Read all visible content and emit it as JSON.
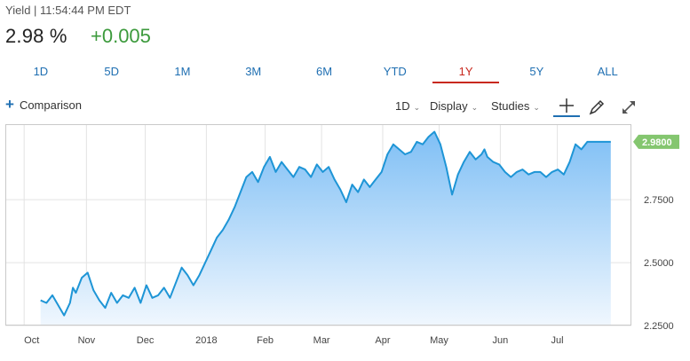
{
  "quote": {
    "subtitle": "Yield | 11:54:44 PM EDT",
    "price": "2.98 %",
    "change": "+0.005",
    "change_color": "#3c9a3c"
  },
  "range_tabs": [
    "1D",
    "5D",
    "1M",
    "3M",
    "6M",
    "YTD",
    "1Y",
    "5Y",
    "ALL"
  ],
  "active_range": "1Y",
  "toolbar": {
    "comparison_label": "Comparison",
    "interval_label": "1D",
    "display_label": "Display",
    "studies_label": "Studies",
    "crosshair_icon": "crosshair-icon",
    "draw_icon": "pencil-icon",
    "expand_icon": "expand-icon"
  },
  "chart_data": {
    "type": "area",
    "title": "",
    "xlabel": "",
    "ylabel": "",
    "ylim": [
      2.25,
      3.05
    ],
    "y_ticks": [
      "2.2500",
      "2.5000",
      "2.7500"
    ],
    "x_ticks": [
      "Oct",
      "Nov",
      "Dec",
      "2018",
      "Feb",
      "Mar",
      "Apr",
      "May",
      "Jun",
      "Jul"
    ],
    "x_tick_positions": [
      -0.28,
      0.78,
      1.78,
      2.82,
      3.82,
      4.78,
      5.82,
      6.78,
      7.82,
      8.79
    ],
    "grid": true,
    "last_value_label": "2.9800",
    "line_color": "#1e95d6",
    "fill_color_top": "#7fbff5",
    "fill_color_bottom": "#f0f7fe",
    "series": [
      {
        "x": [
          0,
          0.1,
          0.2,
          0.3,
          0.4,
          0.5,
          0.55,
          0.6,
          0.7,
          0.8,
          0.9,
          1.0,
          1.1,
          1.2,
          1.3,
          1.4,
          1.5,
          1.6,
          1.7,
          1.8,
          1.9,
          2.0,
          2.1,
          2.2,
          2.3,
          2.4,
          2.5,
          2.6,
          2.7,
          2.8,
          2.9,
          3.0,
          3.1,
          3.2,
          3.3,
          3.4,
          3.5,
          3.6,
          3.7,
          3.8,
          3.9,
          4.0,
          4.1,
          4.2,
          4.3,
          4.4,
          4.5,
          4.6,
          4.7,
          4.8,
          4.9,
          5.0,
          5.1,
          5.2,
          5.3,
          5.4,
          5.5,
          5.6,
          5.7,
          5.8,
          5.9,
          6.0,
          6.1,
          6.2,
          6.3,
          6.4,
          6.5,
          6.6,
          6.7,
          6.8,
          6.9,
          7.0,
          7.1,
          7.2,
          7.3,
          7.4,
          7.5,
          7.55,
          7.6,
          7.7,
          7.8,
          7.9,
          8.0,
          8.1,
          8.2,
          8.3,
          8.4,
          8.5,
          8.6,
          8.7,
          8.8,
          8.9,
          9.0,
          9.1,
          9.2,
          9.3,
          9.4,
          9.5,
          9.6,
          9.7
        ],
        "values": [
          2.35,
          2.34,
          2.37,
          2.33,
          2.29,
          2.34,
          2.4,
          2.38,
          2.44,
          2.46,
          2.39,
          2.35,
          2.32,
          2.38,
          2.34,
          2.37,
          2.36,
          2.4,
          2.34,
          2.41,
          2.36,
          2.37,
          2.4,
          2.36,
          2.42,
          2.48,
          2.45,
          2.41,
          2.45,
          2.5,
          2.55,
          2.6,
          2.63,
          2.67,
          2.72,
          2.78,
          2.84,
          2.86,
          2.82,
          2.88,
          2.92,
          2.86,
          2.9,
          2.87,
          2.84,
          2.88,
          2.87,
          2.84,
          2.89,
          2.86,
          2.88,
          2.83,
          2.79,
          2.74,
          2.81,
          2.78,
          2.83,
          2.8,
          2.83,
          2.86,
          2.93,
          2.97,
          2.95,
          2.93,
          2.94,
          2.98,
          2.97,
          3.0,
          3.02,
          2.97,
          2.88,
          2.77,
          2.85,
          2.9,
          2.94,
          2.91,
          2.93,
          2.95,
          2.92,
          2.9,
          2.89,
          2.86,
          2.84,
          2.86,
          2.87,
          2.85,
          2.86,
          2.86,
          2.84,
          2.86,
          2.87,
          2.85,
          2.9,
          2.97,
          2.95,
          2.98,
          2.98,
          2.98,
          2.98,
          2.98
        ]
      }
    ]
  }
}
